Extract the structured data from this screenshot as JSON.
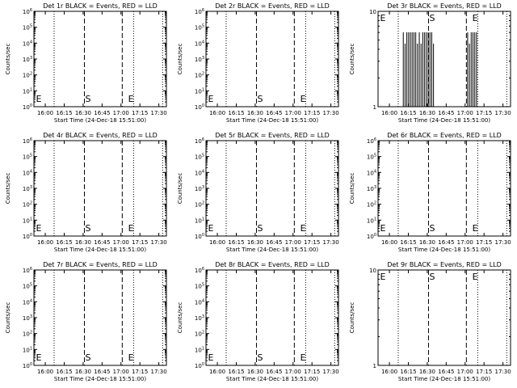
{
  "chart_data": [
    {
      "type": "line",
      "title": "Det 1r BLACK = Events, RED = LLD",
      "xlabel": "Start Time (24-Dec-18 15:51:00)",
      "ylabel": "Counts/sec",
      "xticks": [
        "16:00",
        "16:15",
        "16:30",
        "16:45",
        "17:00",
        "17:15",
        "17:30"
      ],
      "yticks": [
        "10^0",
        "10^1",
        "10^2",
        "10^3",
        "10^4",
        "10^5",
        "10^6"
      ],
      "ylim": [
        1,
        1000000
      ],
      "yscale": "log",
      "markers": [
        "E",
        "S",
        "E"
      ],
      "events": []
    },
    {
      "type": "line",
      "title": "Det 2r BLACK = Events, RED = LLD",
      "xlabel": "Start Time (24-Dec-18 15:51:00)",
      "ylabel": "Counts/sec",
      "xticks": [
        "16:00",
        "16:15",
        "16:30",
        "16:45",
        "17:00",
        "17:15",
        "17:30"
      ],
      "yticks": [
        "10^0",
        "10^1",
        "10^2",
        "10^3",
        "10^4",
        "10^5",
        "10^6"
      ],
      "ylim": [
        1,
        1000000
      ],
      "yscale": "log",
      "markers": [
        "E",
        "S",
        "E"
      ],
      "events": []
    },
    {
      "type": "line",
      "title": "Det 3r BLACK = Events, RED = LLD",
      "xlabel": "Start Time (24-Dec-18 15:51:00)",
      "ylabel": "Counts/sec",
      "xticks": [
        "16:00",
        "16:15",
        "16:30",
        "16:45",
        "17:00",
        "17:15",
        "17:30"
      ],
      "yticks": [
        "1",
        "10"
      ],
      "ylim": [
        1,
        10
      ],
      "yscale": "log",
      "markers": [
        "E",
        "S",
        "E"
      ],
      "events": [
        [
          "16:11",
          "16:35"
        ],
        [
          "17:02",
          "17:10"
        ]
      ]
    },
    {
      "type": "line",
      "title": "Det 4r BLACK = Events, RED = LLD",
      "xlabel": "Start Time (24-Dec-18 15:51:00)",
      "ylabel": "Counts/sec",
      "xticks": [
        "16:00",
        "16:15",
        "16:30",
        "16:45",
        "17:00",
        "17:15",
        "17:30"
      ],
      "yticks": [
        "10^0",
        "10^1",
        "10^2",
        "10^3",
        "10^4",
        "10^5",
        "10^6"
      ],
      "ylim": [
        1,
        1000000
      ],
      "yscale": "log",
      "markers": [
        "E",
        "S",
        "E"
      ],
      "events": []
    },
    {
      "type": "line",
      "title": "Det 5r BLACK = Events, RED = LLD",
      "xlabel": "Start Time (24-Dec-18 15:51:00)",
      "ylabel": "Counts/sec",
      "xticks": [
        "16:00",
        "16:15",
        "16:30",
        "16:45",
        "17:00",
        "17:15",
        "17:30"
      ],
      "yticks": [
        "10^0",
        "10^1",
        "10^2",
        "10^3",
        "10^4",
        "10^5",
        "10^6"
      ],
      "ylim": [
        1,
        1000000
      ],
      "yscale": "log",
      "markers": [
        "E",
        "S",
        "E"
      ],
      "events": []
    },
    {
      "type": "line",
      "title": "Det 6r BLACK = Events, RED = LLD",
      "xlabel": "Start Time (24-Dec-18 15:51:00)",
      "ylabel": "Counts/sec",
      "xticks": [
        "16:00",
        "16:15",
        "16:30",
        "16:45",
        "17:00",
        "17:15",
        "17:30"
      ],
      "yticks": [
        "10^0",
        "10^1",
        "10^2",
        "10^3",
        "10^4",
        "10^5",
        "10^6"
      ],
      "ylim": [
        1,
        1000000
      ],
      "yscale": "log",
      "markers": [
        "E",
        "S",
        "E"
      ],
      "events": []
    },
    {
      "type": "line",
      "title": "Det 7r BLACK = Events, RED = LLD",
      "xlabel": "Start Time (24-Dec-18 15:51:00)",
      "ylabel": "Counts/sec",
      "xticks": [
        "16:00",
        "16:15",
        "16:30",
        "16:45",
        "17:00",
        "17:15",
        "17:30"
      ],
      "yticks": [
        "10^0",
        "10^1",
        "10^2",
        "10^3",
        "10^4",
        "10^5",
        "10^6"
      ],
      "ylim": [
        1,
        1000000
      ],
      "yscale": "log",
      "markers": [
        "E",
        "S",
        "E"
      ],
      "events": []
    },
    {
      "type": "line",
      "title": "Det 8r BLACK = Events, RED = LLD",
      "xlabel": "Start Time (24-Dec-18 15:51:00)",
      "ylabel": "Counts/sec",
      "xticks": [
        "16:00",
        "16:15",
        "16:30",
        "16:45",
        "17:00",
        "17:15",
        "17:30"
      ],
      "yticks": [
        "10^0",
        "10^1",
        "10^2",
        "10^3",
        "10^4",
        "10^5",
        "10^6"
      ],
      "ylim": [
        1,
        1000000
      ],
      "yscale": "log",
      "markers": [
        "E",
        "S",
        "E"
      ],
      "events": []
    },
    {
      "type": "line",
      "title": "Det 9r BLACK = Events, RED = LLD",
      "xlabel": "Start Time (24-Dec-18 15:51:00)",
      "ylabel": "Counts/sec",
      "xticks": [
        "16:00",
        "16:15",
        "16:30",
        "16:45",
        "17:00",
        "17:15",
        "17:30"
      ],
      "yticks": [
        "1",
        "10"
      ],
      "ylim": [
        1,
        10
      ],
      "yscale": "log",
      "markers": [
        "E",
        "S",
        "E"
      ],
      "events": []
    }
  ]
}
